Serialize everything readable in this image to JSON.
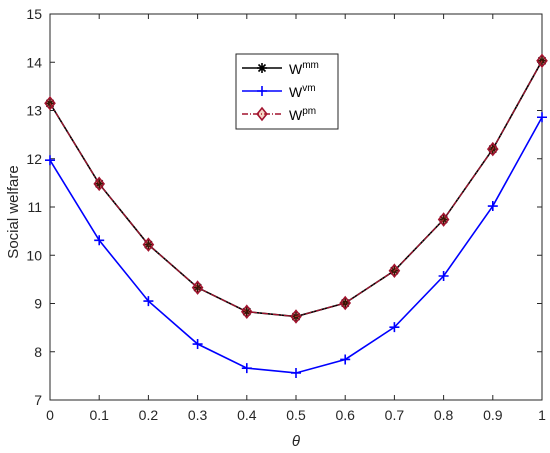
{
  "chart_data": {
    "type": "line",
    "xlabel": "θ",
    "ylabel": "Social welfare",
    "xlim": [
      0,
      1
    ],
    "ylim": [
      7,
      15
    ],
    "x_ticks": [
      "0",
      "0.1",
      "0.2",
      "0.3",
      "0.4",
      "0.5",
      "0.6",
      "0.7",
      "0.8",
      "0.9",
      "1"
    ],
    "y_ticks": [
      "7",
      "8",
      "9",
      "10",
      "11",
      "12",
      "13",
      "14",
      "15"
    ],
    "x": [
      0,
      0.1,
      0.2,
      0.3,
      0.4,
      0.5,
      0.6,
      0.7,
      0.8,
      0.9,
      1.0
    ],
    "legend_position": "top-center",
    "grid": false,
    "series": [
      {
        "name": "W",
        "sup": "mm",
        "color": "#000000",
        "marker": "asterisk",
        "line": "solid",
        "values": [
          13.15,
          11.48,
          10.22,
          9.33,
          8.83,
          8.73,
          9.01,
          9.68,
          10.74,
          12.2,
          14.03
        ]
      },
      {
        "name": "W",
        "sup": "vm",
        "color": "#0000ff",
        "marker": "plus",
        "line": "solid",
        "values": [
          11.97,
          10.31,
          9.05,
          8.16,
          7.66,
          7.56,
          7.84,
          8.51,
          9.57,
          11.02,
          12.86
        ]
      },
      {
        "name": "W",
        "sup": "pm",
        "color": "#a2142f",
        "marker": "diamond",
        "line": "dashdot",
        "values": [
          13.15,
          11.48,
          10.22,
          9.33,
          8.83,
          8.73,
          9.01,
          9.68,
          10.74,
          12.2,
          14.03
        ]
      }
    ]
  }
}
